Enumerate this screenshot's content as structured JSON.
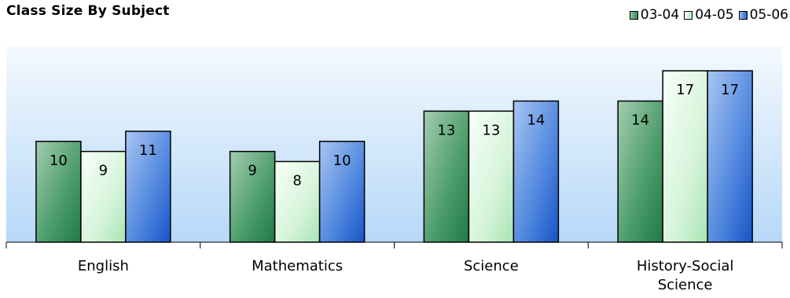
{
  "chart_data": {
    "type": "bar",
    "title": "Class Size By Subject",
    "categories": [
      "English",
      "Mathematics",
      "Science",
      "History-Social Science"
    ],
    "category_lines": [
      [
        "English"
      ],
      [
        "Mathematics"
      ],
      [
        "Science"
      ],
      [
        "History-Social",
        "Science"
      ]
    ],
    "series": [
      {
        "name": "03-04",
        "values": [
          10,
          9,
          13,
          14
        ]
      },
      {
        "name": "04-05",
        "values": [
          9,
          8,
          13,
          17
        ]
      },
      {
        "name": "05-06",
        "values": [
          11,
          10,
          14,
          17
        ]
      }
    ],
    "xlabel": "",
    "ylabel": "",
    "ylim": [
      0,
      19.5
    ],
    "grid": false,
    "legend": "top-right",
    "data_labels": true
  },
  "colors": {
    "series": [
      "#2e8b57",
      "#d9f6dc",
      "#2f6fd6"
    ],
    "background_top": "#f4f9fe",
    "background_bottom": "#b6d8f8"
  }
}
